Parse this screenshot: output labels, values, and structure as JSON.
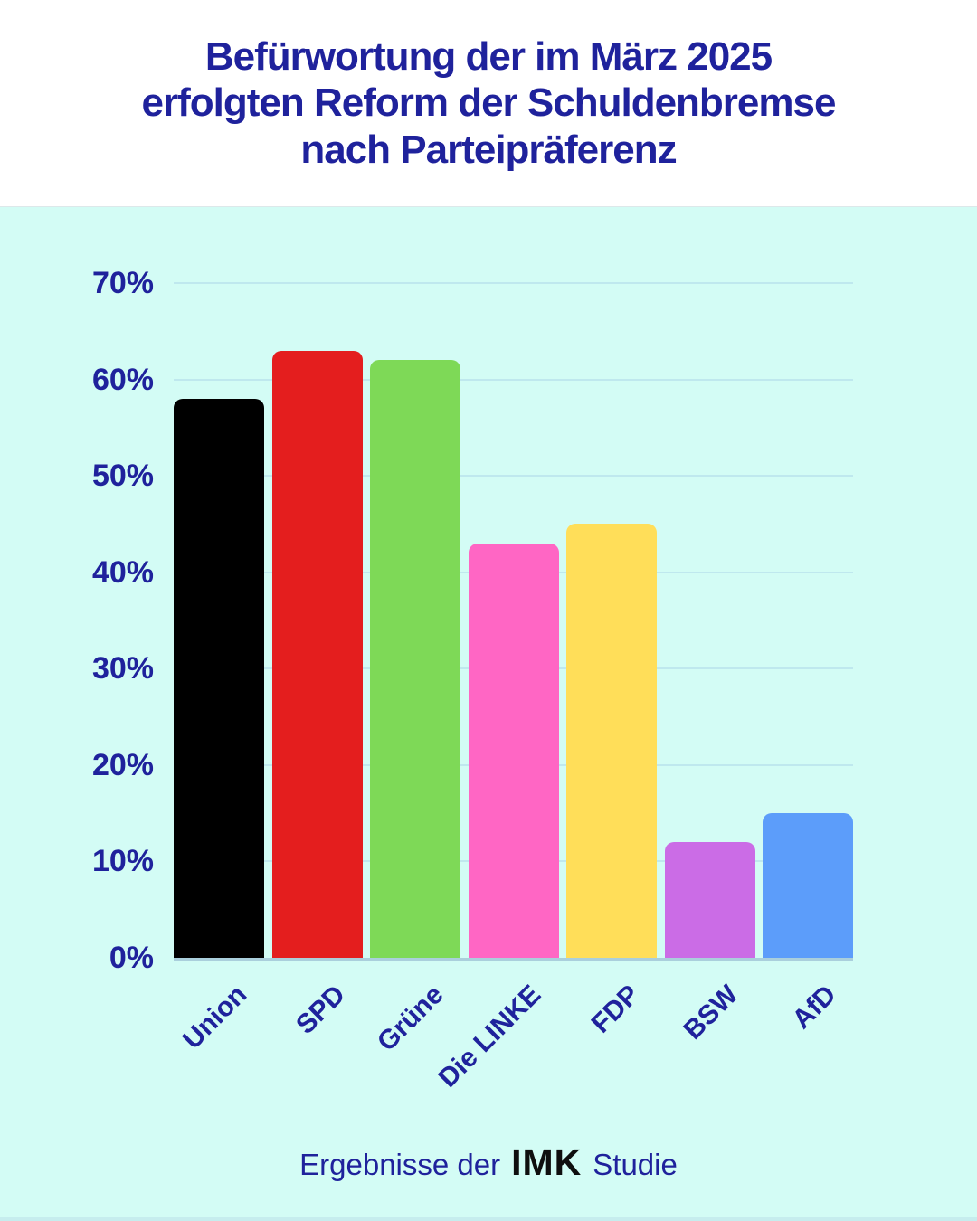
{
  "header": {
    "title": "Befürwortung der im März 2025 erfolgten Reform der Schuldenbremse nach Parteipräferenz",
    "title_lines": [
      "Befürwortung der im März 2025",
      "erfolgten Reform der Schuldenbremse",
      "nach Parteipräferenz"
    ]
  },
  "footer": {
    "prefix": "Ergebnisse der",
    "brand": "IMK",
    "suffix": "Studie"
  },
  "colors": {
    "background": "#d3fcf5",
    "header_background": "#ffffff",
    "text_navy": "#1f229c",
    "gridline": "rgba(175,215,232,0.55)",
    "axis_line": "#aacfdc",
    "brand_black": "#0f0f0f",
    "bottom_strip": "#c6edee"
  },
  "chart_data": {
    "type": "bar",
    "title": "Befürwortung der im März 2025 erfolgten Reform der Schuldenbremse nach Parteipräferenz",
    "categories": [
      "Union",
      "SPD",
      "Grüne",
      "Die LINKE",
      "FDP",
      "BSW",
      "AfD"
    ],
    "values": [
      58,
      63,
      62,
      43,
      45,
      12,
      15
    ],
    "bar_colors": [
      "#000000",
      "#e41e1e",
      "#7ed957",
      "#ff66c4",
      "#ffde59",
      "#cb6ce6",
      "#5c9dfa"
    ],
    "xlabel": "",
    "ylabel": "",
    "ylim": [
      0,
      70
    ],
    "yticks": [
      0,
      10,
      20,
      30,
      40,
      50,
      60,
      70
    ],
    "tick_suffix": "%",
    "grid": true,
    "legend": false,
    "caption": "Ergebnisse der IMK Studie"
  }
}
